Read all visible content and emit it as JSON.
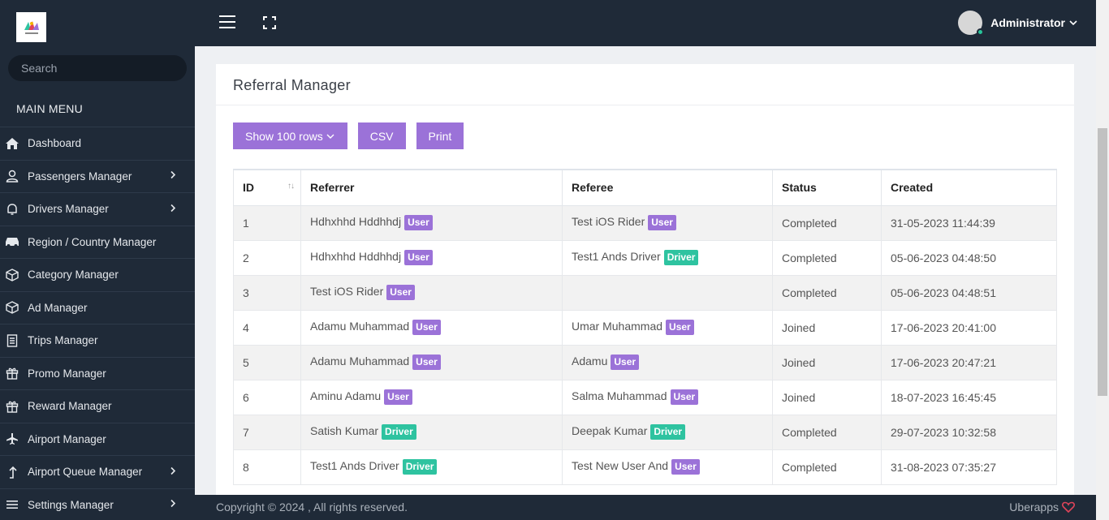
{
  "sidebar": {
    "search_placeholder": "Search",
    "menu_heading": "MAIN MENU",
    "items": [
      {
        "label": "Dashboard",
        "icon": "home-icon",
        "has_submenu": false
      },
      {
        "label": "Passengers Manager",
        "icon": "user-icon",
        "has_submenu": true
      },
      {
        "label": "Drivers Manager",
        "icon": "bell-icon",
        "has_submenu": true
      },
      {
        "label": "Region / Country Manager",
        "icon": "car-icon",
        "has_submenu": false
      },
      {
        "label": "Category Manager",
        "icon": "cube-icon",
        "has_submenu": false
      },
      {
        "label": "Ad Manager",
        "icon": "cube-icon",
        "has_submenu": false
      },
      {
        "label": "Trips Manager",
        "icon": "document-icon",
        "has_submenu": false
      },
      {
        "label": "Promo Manager",
        "icon": "gift-icon",
        "has_submenu": false
      },
      {
        "label": "Reward Manager",
        "icon": "gift-icon",
        "has_submenu": false
      },
      {
        "label": "Airport Manager",
        "icon": "plane-icon",
        "has_submenu": false
      },
      {
        "label": "Airport Queue Manager",
        "icon": "arrow-up-icon",
        "has_submenu": true
      },
      {
        "label": "Settings Manager",
        "icon": "menu-icon",
        "has_submenu": true
      }
    ]
  },
  "header": {
    "user_name": "Administrator"
  },
  "page": {
    "title": "Referral Manager",
    "buttons": {
      "rows": "Show 100 rows",
      "csv": "CSV",
      "print": "Print"
    },
    "table": {
      "columns": [
        "ID",
        "Referrer",
        "Referee",
        "Status",
        "Created"
      ],
      "rows": [
        {
          "id": "1",
          "referrer": "Hdhxhhd Hddhhdj",
          "referrer_type": "User",
          "referee": "Test iOS Rider",
          "referee_type": "User",
          "status": "Completed",
          "created": "31-05-2023 11:44:39"
        },
        {
          "id": "2",
          "referrer": "Hdhxhhd Hddhhdj",
          "referrer_type": "User",
          "referee": "Test1 Ands Driver",
          "referee_type": "Driver",
          "status": "Completed",
          "created": "05-06-2023 04:48:50"
        },
        {
          "id": "3",
          "referrer": "Test iOS Rider",
          "referrer_type": "User",
          "referee": "",
          "referee_type": "",
          "status": "Completed",
          "created": "05-06-2023 04:48:51"
        },
        {
          "id": "4",
          "referrer": "Adamu Muhammad",
          "referrer_type": "User",
          "referee": "Umar Muhammad",
          "referee_type": "User",
          "status": "Joined",
          "created": "17-06-2023 20:41:00"
        },
        {
          "id": "5",
          "referrer": "Adamu Muhammad",
          "referrer_type": "User",
          "referee": "Adamu",
          "referee_type": "User",
          "status": "Joined",
          "created": "17-06-2023 20:47:21"
        },
        {
          "id": "6",
          "referrer": "Aminu Adamu",
          "referrer_type": "User",
          "referee": "Salma Muhammad",
          "referee_type": "User",
          "status": "Joined",
          "created": "18-07-2023 16:45:45"
        },
        {
          "id": "7",
          "referrer": "Satish Kumar",
          "referrer_type": "Driver",
          "referee": "Deepak Kumar",
          "referee_type": "Driver",
          "status": "Completed",
          "created": "29-07-2023 10:32:58"
        },
        {
          "id": "8",
          "referrer": "Test1 Ands Driver",
          "referrer_type": "Driver",
          "referee": "Test New User And",
          "referee_type": "User",
          "status": "Completed",
          "created": "31-08-2023 07:35:27"
        }
      ]
    }
  },
  "footer": {
    "copyright": "Copyright © 2024 , All rights reserved.",
    "brand": "Uberapps"
  },
  "colors": {
    "sidebar_bg": "#1f2a38",
    "accent_purple": "#9b72d8",
    "driver_green": "#2ec3a0",
    "heart_red": "#e0445a"
  }
}
